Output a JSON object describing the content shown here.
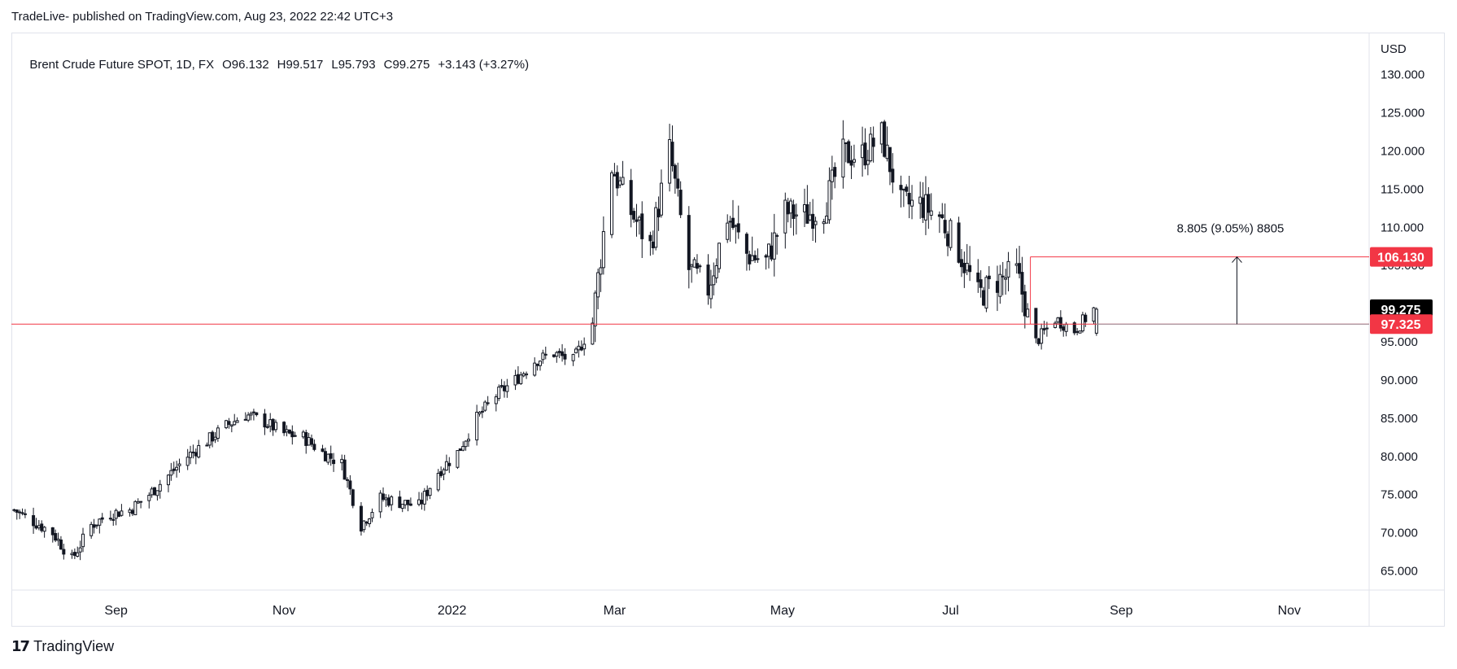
{
  "header": {
    "published": "TradeLive- published on TradingView.com, Aug 23, 2022 22:42 UTC+3"
  },
  "legend": {
    "symbol": "Brent Crude Future SPOT, 1D, FX",
    "open": "O96.132",
    "high": "H99.517",
    "low": "L95.793",
    "close": "C99.275",
    "change": "+3.143 (+3.27%)"
  },
  "brand": {
    "logo_icon": "tradingview-logo-icon",
    "name": "TradingView"
  },
  "colors": {
    "up": "#131722",
    "down": "#131722",
    "support_line": "#f23645",
    "range_line": "#f23645"
  },
  "chart_data": {
    "type": "candlestick",
    "currency_label": "USD",
    "ylim": [
      62.5,
      135.5
    ],
    "y_ticks": [
      65,
      70,
      75,
      80,
      85,
      90,
      95,
      100,
      105,
      110,
      115,
      120,
      125,
      130
    ],
    "y_tick_labels": [
      "65.000",
      "70.000",
      "75.000",
      "80.000",
      "85.000",
      "90.000",
      "95.000",
      "100.000",
      "105.000",
      "110.000",
      "115.000",
      "120.000",
      "125.000",
      "130.000"
    ],
    "x_range": [
      "2021-07-25",
      "2022-11-30"
    ],
    "x_ticks": [
      {
        "date": "2021-09-01",
        "label": "Sep"
      },
      {
        "date": "2021-11-01",
        "label": "Nov"
      },
      {
        "date": "2022-01-01",
        "label": "2022"
      },
      {
        "date": "2022-03-01",
        "label": "Mar"
      },
      {
        "date": "2022-05-01",
        "label": "May"
      },
      {
        "date": "2022-07-01",
        "label": "Jul"
      },
      {
        "date": "2022-09-01",
        "label": "Sep"
      },
      {
        "date": "2022-11-01",
        "label": "Nov"
      }
    ],
    "closes": [
      {
        "date": "2021-07-26",
        "close": 73.0
      },
      {
        "date": "2021-08-02",
        "close": 71.5
      },
      {
        "date": "2021-08-09",
        "close": 70.0
      },
      {
        "date": "2021-08-16",
        "close": 66.5
      },
      {
        "date": "2021-08-23",
        "close": 71.0
      },
      {
        "date": "2021-08-30",
        "close": 72.5
      },
      {
        "date": "2021-09-06",
        "close": 73.0
      },
      {
        "date": "2021-09-13",
        "close": 75.0
      },
      {
        "date": "2021-09-20",
        "close": 77.5
      },
      {
        "date": "2021-09-27",
        "close": 80.0
      },
      {
        "date": "2021-10-04",
        "close": 82.0
      },
      {
        "date": "2021-10-11",
        "close": 84.0
      },
      {
        "date": "2021-10-18",
        "close": 85.5
      },
      {
        "date": "2021-10-25",
        "close": 84.5
      },
      {
        "date": "2021-11-01",
        "close": 83.0
      },
      {
        "date": "2021-11-08",
        "close": 82.5
      },
      {
        "date": "2021-11-15",
        "close": 80.5
      },
      {
        "date": "2021-11-22",
        "close": 79.0
      },
      {
        "date": "2021-11-29",
        "close": 71.0
      },
      {
        "date": "2021-12-06",
        "close": 74.5
      },
      {
        "date": "2021-12-13",
        "close": 74.0
      },
      {
        "date": "2021-12-20",
        "close": 73.5
      },
      {
        "date": "2021-12-27",
        "close": 78.0
      },
      {
        "date": "2022-01-03",
        "close": 80.5
      },
      {
        "date": "2022-01-10",
        "close": 85.0
      },
      {
        "date": "2022-01-17",
        "close": 88.0
      },
      {
        "date": "2022-01-24",
        "close": 90.0
      },
      {
        "date": "2022-01-31",
        "close": 92.5
      },
      {
        "date": "2022-02-07",
        "close": 93.5
      },
      {
        "date": "2022-02-14",
        "close": 92.5
      },
      {
        "date": "2022-02-21",
        "close": 97.5
      },
      {
        "date": "2022-02-28",
        "close": 118.0
      },
      {
        "date": "2022-03-07",
        "close": 112.0
      },
      {
        "date": "2022-03-14",
        "close": 107.5
      },
      {
        "date": "2022-03-21",
        "close": 120.0
      },
      {
        "date": "2022-03-28",
        "close": 104.5
      },
      {
        "date": "2022-04-04",
        "close": 102.0
      },
      {
        "date": "2022-04-11",
        "close": 111.5
      },
      {
        "date": "2022-04-18",
        "close": 106.5
      },
      {
        "date": "2022-04-25",
        "close": 105.5
      },
      {
        "date": "2022-05-02",
        "close": 112.0
      },
      {
        "date": "2022-05-09",
        "close": 111.5
      },
      {
        "date": "2022-05-16",
        "close": 112.5
      },
      {
        "date": "2022-05-23",
        "close": 119.5
      },
      {
        "date": "2022-05-30",
        "close": 119.5
      },
      {
        "date": "2022-06-06",
        "close": 122.0
      },
      {
        "date": "2022-06-13",
        "close": 113.0
      },
      {
        "date": "2022-06-20",
        "close": 113.0
      },
      {
        "date": "2022-06-27",
        "close": 111.5
      },
      {
        "date": "2022-07-04",
        "close": 107.0
      },
      {
        "date": "2022-07-11",
        "close": 101.0
      },
      {
        "date": "2022-07-18",
        "close": 103.0
      },
      {
        "date": "2022-07-25",
        "close": 104.0
      },
      {
        "date": "2022-08-01",
        "close": 95.0
      },
      {
        "date": "2022-08-08",
        "close": 98.0
      },
      {
        "date": "2022-08-15",
        "close": 96.5
      },
      {
        "date": "2022-08-22",
        "close": 99.275
      }
    ],
    "last_bar": {
      "date": "2022-08-23",
      "open": 96.132,
      "high": 99.517,
      "low": 95.793,
      "close": 99.275
    },
    "price_labels": [
      {
        "value": 106.13,
        "label": "106.130",
        "color": "#f23645"
      },
      {
        "value": 99.275,
        "label": "99.275",
        "color": "#000000"
      },
      {
        "value": 97.325,
        "label": "97.325",
        "color": "#f23645"
      }
    ],
    "horizontal_line": {
      "value": 97.325,
      "color": "#f23645"
    },
    "range_measure": {
      "from_date": "2022-08-26",
      "to_date": "2022-11-30",
      "low": 97.325,
      "high": 106.13,
      "start_top_date": "2022-07-30",
      "text": "8.805 (9.05%) 8805"
    }
  }
}
